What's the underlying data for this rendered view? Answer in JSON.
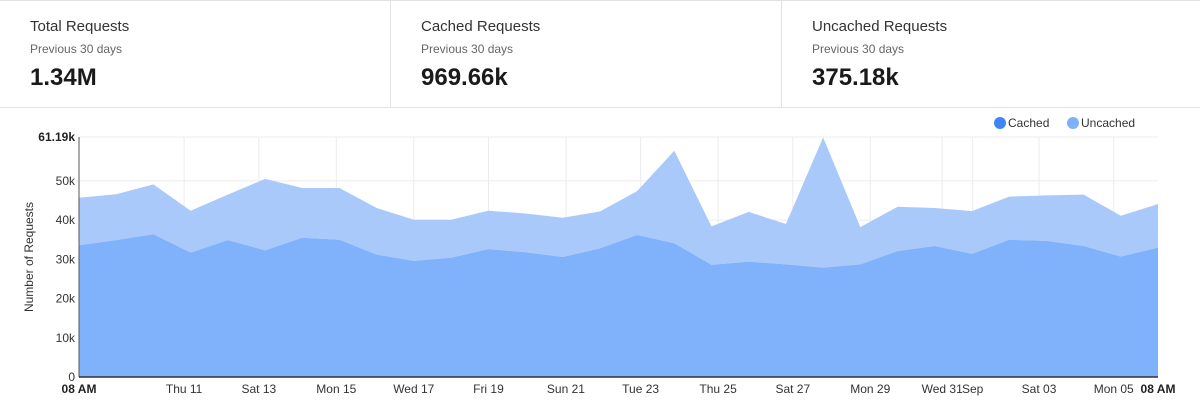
{
  "stats": [
    {
      "title": "Total Requests",
      "subtitle": "Previous 30 days",
      "value": "1.34M"
    },
    {
      "title": "Cached Requests",
      "subtitle": "Previous 30 days",
      "value": "969.66k"
    },
    {
      "title": "Uncached Requests",
      "subtitle": "Previous 30 days",
      "value": "375.18k"
    }
  ],
  "chart_data": {
    "type": "area",
    "stacked": true,
    "ylabel": "Number of Requests",
    "ylim": [
      0,
      61190
    ],
    "ymax_label": "61.19k",
    "yticks": [
      {
        "value": 0,
        "label": "0"
      },
      {
        "value": 10000,
        "label": "10k"
      },
      {
        "value": 20000,
        "label": "20k"
      },
      {
        "value": 30000,
        "label": "30k"
      },
      {
        "value": 40000,
        "label": "40k"
      },
      {
        "value": 50000,
        "label": "50k"
      }
    ],
    "x_start_label": "08 AM",
    "x_end_label": "08 AM",
    "x_tick_labels": [
      "Thu 11",
      "Sat 13",
      "Mon 15",
      "Wed 17",
      "Fri 19",
      "Sun 21",
      "Tue 23",
      "Thu 25",
      "Sat 27",
      "Mon 29",
      "Wed 31",
      "Sep",
      "Sat 03",
      "Mon 05"
    ],
    "legend": {
      "position": "top-right"
    },
    "grid": true,
    "series": [
      {
        "name": "Cached",
        "color": "#3d86f4",
        "values": [
          33600,
          34900,
          36400,
          31700,
          34900,
          32300,
          35500,
          35000,
          31200,
          29600,
          30400,
          32600,
          31800,
          30600,
          32800,
          36200,
          34100,
          28600,
          29400,
          28700,
          27900,
          28700,
          32100,
          33400,
          31400,
          35000,
          34700,
          33400,
          30700,
          33000
        ]
      },
      {
        "name": "Uncached",
        "color": "#7fb0f8",
        "values": [
          12100,
          11700,
          12700,
          10700,
          11600,
          18200,
          12700,
          13200,
          11900,
          10500,
          9700,
          9800,
          9900,
          10000,
          9400,
          11200,
          23600,
          9800,
          12700,
          10300,
          33200,
          9500,
          11300,
          9700,
          10900,
          11000,
          11600,
          13100,
          10400,
          11100
        ]
      }
    ]
  }
}
